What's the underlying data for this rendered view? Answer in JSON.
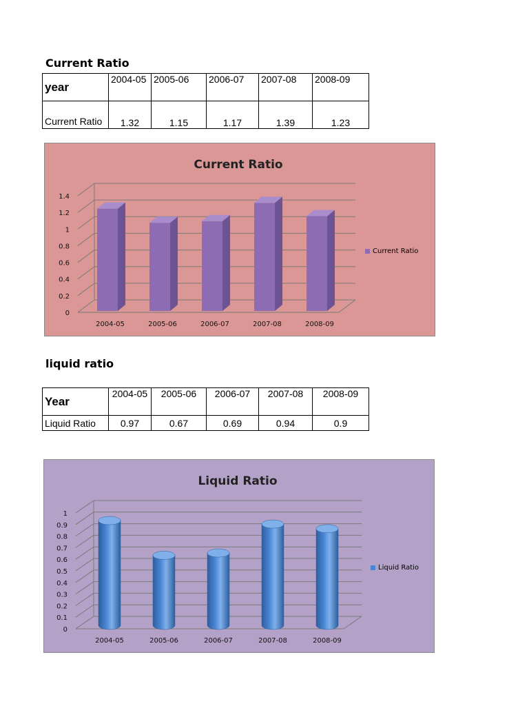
{
  "sections": [
    {
      "heading": "Current Ratio",
      "table": {
        "header_label": "year",
        "row_label": "Current Ratio",
        "years": [
          "2004-05",
          "2005-06",
          "2006-07",
          "2007-08",
          "2008-09"
        ],
        "values": [
          "1.32",
          "1.15",
          "1.17",
          "1.39",
          "1.23"
        ]
      }
    },
    {
      "heading": "liquid ratio",
      "table": {
        "header_label": "Year",
        "row_label": "Liquid Ratio",
        "years": [
          "2004-05",
          "2005-06",
          "2006-07",
          "2007-08",
          "2008-09"
        ],
        "values": [
          "0.97",
          "0.67",
          "0.69",
          "0.94",
          "0.9"
        ]
      }
    }
  ],
  "chart_data": [
    {
      "type": "bar",
      "shape": "3d-box",
      "title": "Current Ratio",
      "categories": [
        "2004-05",
        "2005-06",
        "2006-07",
        "2007-08",
        "2008-09"
      ],
      "series": [
        {
          "name": "Current Ratio",
          "values": [
            1.32,
            1.15,
            1.17,
            1.39,
            1.23
          ]
        }
      ],
      "yticks": [
        "0",
        "0.2",
        "0.4",
        "0.6",
        "0.8",
        "1",
        "1.2",
        "1.4"
      ],
      "ylim": [
        0,
        1.4
      ],
      "grid": true,
      "legend": "right",
      "colors": {
        "background": "#db9696",
        "bar": "#8e6cb4",
        "bar_side": "#6e5394",
        "bar_top": "#a88ccc"
      }
    },
    {
      "type": "bar",
      "shape": "cylinder",
      "title": "Liquid Ratio",
      "categories": [
        "2004-05",
        "2005-06",
        "2006-07",
        "2007-08",
        "2008-09"
      ],
      "series": [
        {
          "name": "Liquid Ratio",
          "values": [
            0.97,
            0.67,
            0.69,
            0.94,
            0.9
          ]
        }
      ],
      "yticks": [
        "0",
        "0.1",
        "0.2",
        "0.3",
        "0.4",
        "0.5",
        "0.6",
        "0.7",
        "0.8",
        "0.9",
        "1"
      ],
      "ylim": [
        0,
        1
      ],
      "grid": true,
      "legend": "right",
      "colors": {
        "background": "#b3a1c8",
        "bar": "#4a86d4",
        "bar_dark": "#2d5f9e",
        "bar_top": "#7fb0ea"
      }
    }
  ]
}
